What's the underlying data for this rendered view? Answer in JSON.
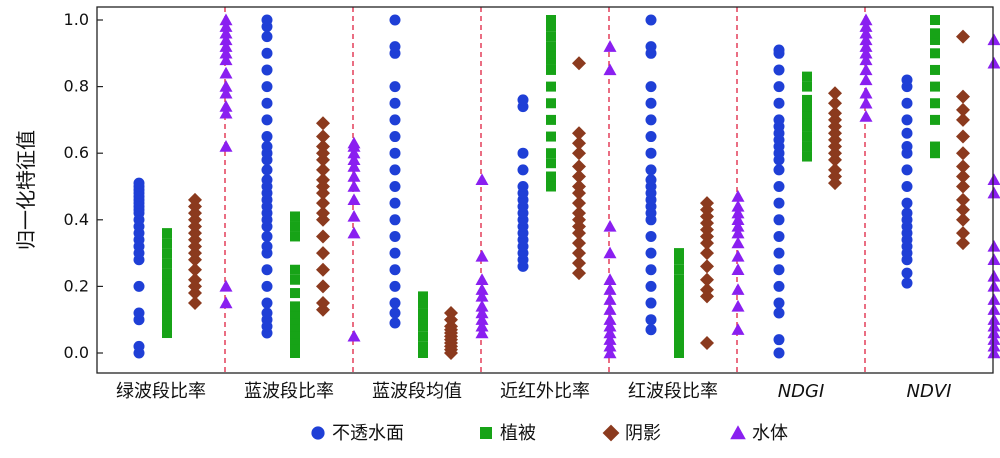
{
  "chart_data": {
    "type": "scatter",
    "ylabel": "归一化特征值",
    "ylim": [
      0.0,
      1.0
    ],
    "yticks": [
      "0.0",
      "0.2",
      "0.4",
      "0.6",
      "0.8",
      "1.0"
    ],
    "categories": [
      "绿波段比率",
      "蓝波段比率",
      "蓝波段均值",
      "近红外比率",
      "红波段比率",
      "NDGI",
      "NDVI"
    ],
    "italic_categories": [
      "NDGI",
      "NDVI"
    ],
    "group_separators": "dashed-red",
    "legend_position": "bottom",
    "series": [
      {
        "name": "不透水面",
        "marker": "circle",
        "color": "#1f3fd6",
        "values": [
          [
            0.0,
            0.02,
            0.1,
            0.12,
            0.2,
            0.28,
            0.3,
            0.32,
            0.34,
            0.36,
            0.38,
            0.4,
            0.42,
            0.43,
            0.44,
            0.45,
            0.46,
            0.47,
            0.48,
            0.49,
            0.5,
            0.51
          ],
          [
            0.06,
            0.08,
            0.1,
            0.12,
            0.15,
            0.2,
            0.25,
            0.3,
            0.32,
            0.35,
            0.38,
            0.4,
            0.42,
            0.44,
            0.46,
            0.48,
            0.5,
            0.52,
            0.55,
            0.58,
            0.6,
            0.62,
            0.65,
            0.7,
            0.75,
            0.8,
            0.85,
            0.9,
            0.95,
            0.98,
            1.0
          ],
          [
            0.09,
            0.12,
            0.15,
            0.2,
            0.25,
            0.3,
            0.35,
            0.4,
            0.45,
            0.5,
            0.55,
            0.6,
            0.65,
            0.7,
            0.75,
            0.8,
            0.9,
            0.92,
            1.0
          ],
          [
            0.26,
            0.28,
            0.3,
            0.32,
            0.34,
            0.36,
            0.38,
            0.4,
            0.42,
            0.44,
            0.46,
            0.48,
            0.5,
            0.55,
            0.6,
            0.74,
            0.76
          ],
          [
            0.07,
            0.1,
            0.15,
            0.2,
            0.25,
            0.3,
            0.35,
            0.4,
            0.42,
            0.44,
            0.46,
            0.48,
            0.5,
            0.52,
            0.55,
            0.6,
            0.65,
            0.7,
            0.75,
            0.8,
            0.9,
            0.92,
            1.0
          ],
          [
            0.0,
            0.04,
            0.12,
            0.15,
            0.2,
            0.25,
            0.3,
            0.35,
            0.4,
            0.45,
            0.5,
            0.55,
            0.58,
            0.6,
            0.62,
            0.64,
            0.66,
            0.68,
            0.7,
            0.75,
            0.8,
            0.85,
            0.9,
            0.91
          ],
          [
            0.21,
            0.24,
            0.28,
            0.3,
            0.32,
            0.34,
            0.36,
            0.38,
            0.4,
            0.42,
            0.45,
            0.5,
            0.55,
            0.6,
            0.62,
            0.66,
            0.7,
            0.75,
            0.8,
            0.82
          ]
        ]
      },
      {
        "name": "植被",
        "marker": "square",
        "color": "#17a317",
        "values": [
          [
            0.06,
            0.08,
            0.1,
            0.12,
            0.14,
            0.16,
            0.18,
            0.2,
            0.22,
            0.24,
            0.27,
            0.3,
            0.33,
            0.36
          ],
          [
            0.0,
            0.02,
            0.04,
            0.06,
            0.08,
            0.1,
            0.12,
            0.14,
            0.18,
            0.22,
            0.25,
            0.35,
            0.38,
            0.41
          ],
          [
            0.0,
            0.02,
            0.05,
            0.08,
            0.1,
            0.12,
            0.15,
            0.17
          ],
          [
            0.5,
            0.53,
            0.57,
            0.6,
            0.65,
            0.7,
            0.75,
            0.8,
            0.85,
            0.88,
            0.9,
            0.92,
            0.95,
            0.98,
            1.0
          ],
          [
            0.0,
            0.02,
            0.04,
            0.06,
            0.08,
            0.1,
            0.12,
            0.14,
            0.16,
            0.18,
            0.2,
            0.22,
            0.25,
            0.28,
            0.3
          ],
          [
            0.59,
            0.62,
            0.65,
            0.68,
            0.7,
            0.72,
            0.74,
            0.76,
            0.8,
            0.83
          ],
          [
            0.6,
            0.62,
            0.7,
            0.75,
            0.8,
            0.85,
            0.9,
            0.94,
            0.96,
            1.0
          ]
        ]
      },
      {
        "name": "阴影",
        "marker": "diamond",
        "color": "#8b3a1e",
        "values": [
          [
            0.15,
            0.18,
            0.2,
            0.22,
            0.25,
            0.28,
            0.3,
            0.32,
            0.34,
            0.36,
            0.38,
            0.4,
            0.42,
            0.44,
            0.46
          ],
          [
            0.13,
            0.15,
            0.2,
            0.25,
            0.3,
            0.35,
            0.4,
            0.42,
            0.45,
            0.48,
            0.5,
            0.52,
            0.55,
            0.58,
            0.6,
            0.62,
            0.65,
            0.69
          ],
          [
            0.0,
            0.01,
            0.02,
            0.03,
            0.04,
            0.05,
            0.06,
            0.07,
            0.08,
            0.1,
            0.12
          ],
          [
            0.24,
            0.27,
            0.3,
            0.33,
            0.36,
            0.38,
            0.4,
            0.42,
            0.45,
            0.48,
            0.5,
            0.53,
            0.56,
            0.6,
            0.63,
            0.66,
            0.87
          ],
          [
            0.03,
            0.17,
            0.19,
            0.22,
            0.26,
            0.3,
            0.33,
            0.35,
            0.37,
            0.39,
            0.41,
            0.43,
            0.45
          ],
          [
            0.51,
            0.53,
            0.55,
            0.58,
            0.6,
            0.62,
            0.64,
            0.66,
            0.68,
            0.7,
            0.72,
            0.75,
            0.78
          ],
          [
            0.33,
            0.36,
            0.4,
            0.43,
            0.46,
            0.5,
            0.53,
            0.56,
            0.6,
            0.65,
            0.7,
            0.73,
            0.77,
            0.95
          ]
        ]
      },
      {
        "name": "水体",
        "marker": "triangle",
        "color": "#8a1ff0",
        "values": [
          [
            0.15,
            0.2,
            0.62,
            0.72,
            0.74,
            0.78,
            0.8,
            0.84,
            0.88,
            0.9,
            0.92,
            0.94,
            0.96,
            0.98,
            1.0
          ],
          [
            0.05,
            0.36,
            0.41,
            0.46,
            0.5,
            0.53,
            0.56,
            0.58,
            0.6,
            0.62,
            0.63
          ],
          [
            0.06,
            0.08,
            0.1,
            0.12,
            0.14,
            0.17,
            0.19,
            0.22,
            0.29,
            0.52
          ],
          [
            0.0,
            0.02,
            0.04,
            0.06,
            0.08,
            0.1,
            0.13,
            0.16,
            0.19,
            0.22,
            0.3,
            0.38,
            0.85,
            0.92
          ],
          [
            0.07,
            0.14,
            0.19,
            0.25,
            0.29,
            0.33,
            0.36,
            0.38,
            0.4,
            0.42,
            0.44,
            0.47
          ],
          [
            0.71,
            0.75,
            0.78,
            0.82,
            0.85,
            0.88,
            0.9,
            0.92,
            0.94,
            0.96,
            0.98,
            1.0
          ],
          [
            0.0,
            0.02,
            0.04,
            0.06,
            0.08,
            0.1,
            0.13,
            0.16,
            0.2,
            0.23,
            0.28,
            0.32,
            0.48,
            0.52,
            0.87,
            0.94
          ]
        ]
      }
    ]
  }
}
